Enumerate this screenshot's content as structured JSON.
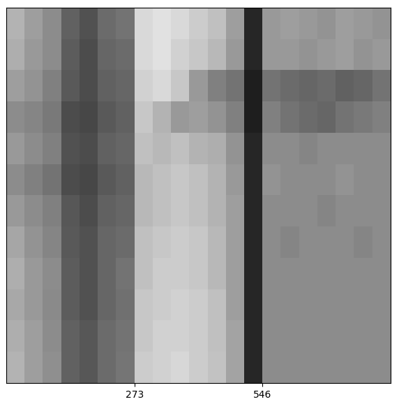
{
  "chart_data": {
    "type": "heatmap",
    "xlim": [
      0,
      819
    ],
    "xticks": [
      273,
      546
    ],
    "tick_labels": "x",
    "color": "gray",
    "cell_range": [
      0,
      1
    ],
    "cells": [
      [
        0.7,
        0.62,
        0.55,
        0.38,
        0.32,
        0.42,
        0.45,
        0.85,
        0.88,
        0.85,
        0.8,
        0.75,
        0.62,
        0.15,
        0.6,
        0.62,
        0.6,
        0.58,
        0.62,
        0.6,
        0.58
      ],
      [
        0.68,
        0.6,
        0.55,
        0.36,
        0.3,
        0.4,
        0.42,
        0.85,
        0.88,
        0.82,
        0.78,
        0.72,
        0.6,
        0.15,
        0.6,
        0.6,
        0.58,
        0.6,
        0.62,
        0.58,
        0.6
      ],
      [
        0.62,
        0.58,
        0.5,
        0.35,
        0.3,
        0.38,
        0.4,
        0.82,
        0.85,
        0.78,
        0.6,
        0.5,
        0.45,
        0.12,
        0.45,
        0.42,
        0.4,
        0.42,
        0.38,
        0.4,
        0.45
      ],
      [
        0.55,
        0.52,
        0.48,
        0.3,
        0.28,
        0.35,
        0.38,
        0.78,
        0.7,
        0.6,
        0.62,
        0.58,
        0.5,
        0.12,
        0.5,
        0.45,
        0.42,
        0.4,
        0.45,
        0.48,
        0.5
      ],
      [
        0.6,
        0.55,
        0.5,
        0.32,
        0.3,
        0.38,
        0.4,
        0.75,
        0.72,
        0.75,
        0.7,
        0.68,
        0.58,
        0.15,
        0.55,
        0.55,
        0.52,
        0.55,
        0.55,
        0.55,
        0.55
      ],
      [
        0.55,
        0.5,
        0.45,
        0.3,
        0.28,
        0.35,
        0.38,
        0.72,
        0.75,
        0.78,
        0.75,
        0.7,
        0.6,
        0.15,
        0.58,
        0.55,
        0.55,
        0.55,
        0.58,
        0.55,
        0.55
      ],
      [
        0.6,
        0.55,
        0.5,
        0.34,
        0.3,
        0.38,
        0.4,
        0.72,
        0.75,
        0.78,
        0.75,
        0.7,
        0.62,
        0.15,
        0.55,
        0.55,
        0.55,
        0.52,
        0.55,
        0.55,
        0.55
      ],
      [
        0.65,
        0.58,
        0.52,
        0.35,
        0.32,
        0.4,
        0.42,
        0.75,
        0.78,
        0.8,
        0.78,
        0.72,
        0.62,
        0.15,
        0.55,
        0.52,
        0.55,
        0.55,
        0.55,
        0.52,
        0.55
      ],
      [
        0.68,
        0.6,
        0.55,
        0.36,
        0.32,
        0.4,
        0.45,
        0.75,
        0.8,
        0.8,
        0.78,
        0.72,
        0.62,
        0.15,
        0.55,
        0.55,
        0.55,
        0.55,
        0.55,
        0.55,
        0.55
      ],
      [
        0.66,
        0.6,
        0.54,
        0.36,
        0.32,
        0.4,
        0.44,
        0.78,
        0.8,
        0.82,
        0.8,
        0.75,
        0.62,
        0.15,
        0.55,
        0.55,
        0.55,
        0.55,
        0.55,
        0.55,
        0.55
      ],
      [
        0.68,
        0.62,
        0.55,
        0.38,
        0.34,
        0.42,
        0.45,
        0.78,
        0.82,
        0.82,
        0.8,
        0.75,
        0.64,
        0.15,
        0.55,
        0.55,
        0.55,
        0.55,
        0.55,
        0.55,
        0.55
      ],
      [
        0.7,
        0.62,
        0.56,
        0.38,
        0.34,
        0.42,
        0.46,
        0.8,
        0.82,
        0.84,
        0.8,
        0.76,
        0.64,
        0.15,
        0.55,
        0.55,
        0.55,
        0.55,
        0.55,
        0.55,
        0.55
      ]
    ]
  }
}
